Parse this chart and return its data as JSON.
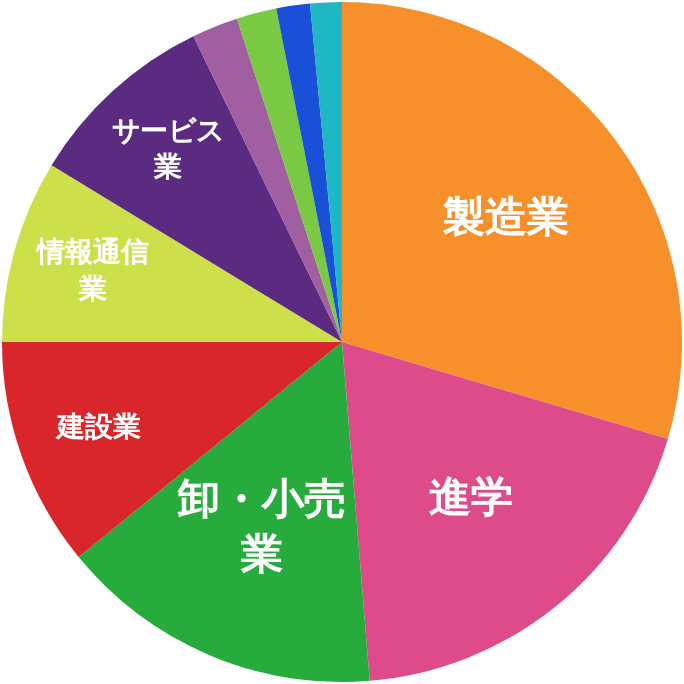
{
  "chart_data": {
    "type": "pie",
    "categories": [
      "製造業",
      "進学",
      "卸・小売業",
      "建設業",
      "情報通信業",
      "サービス業",
      null,
      null,
      null,
      null
    ],
    "values": [
      29.6,
      19.1,
      15.4,
      10.9,
      8.7,
      9.1,
      2.2,
      1.9,
      1.6,
      1.5
    ],
    "colors": [
      "#f7902a",
      "#dd4b8b",
      "#26ab3c",
      "#d9262b",
      "#cde04a",
      "#5b2b82",
      "#a05fa0",
      "#7ac943",
      "#1a4fd8",
      "#1fb7c4"
    ],
    "legend": false
  }
}
